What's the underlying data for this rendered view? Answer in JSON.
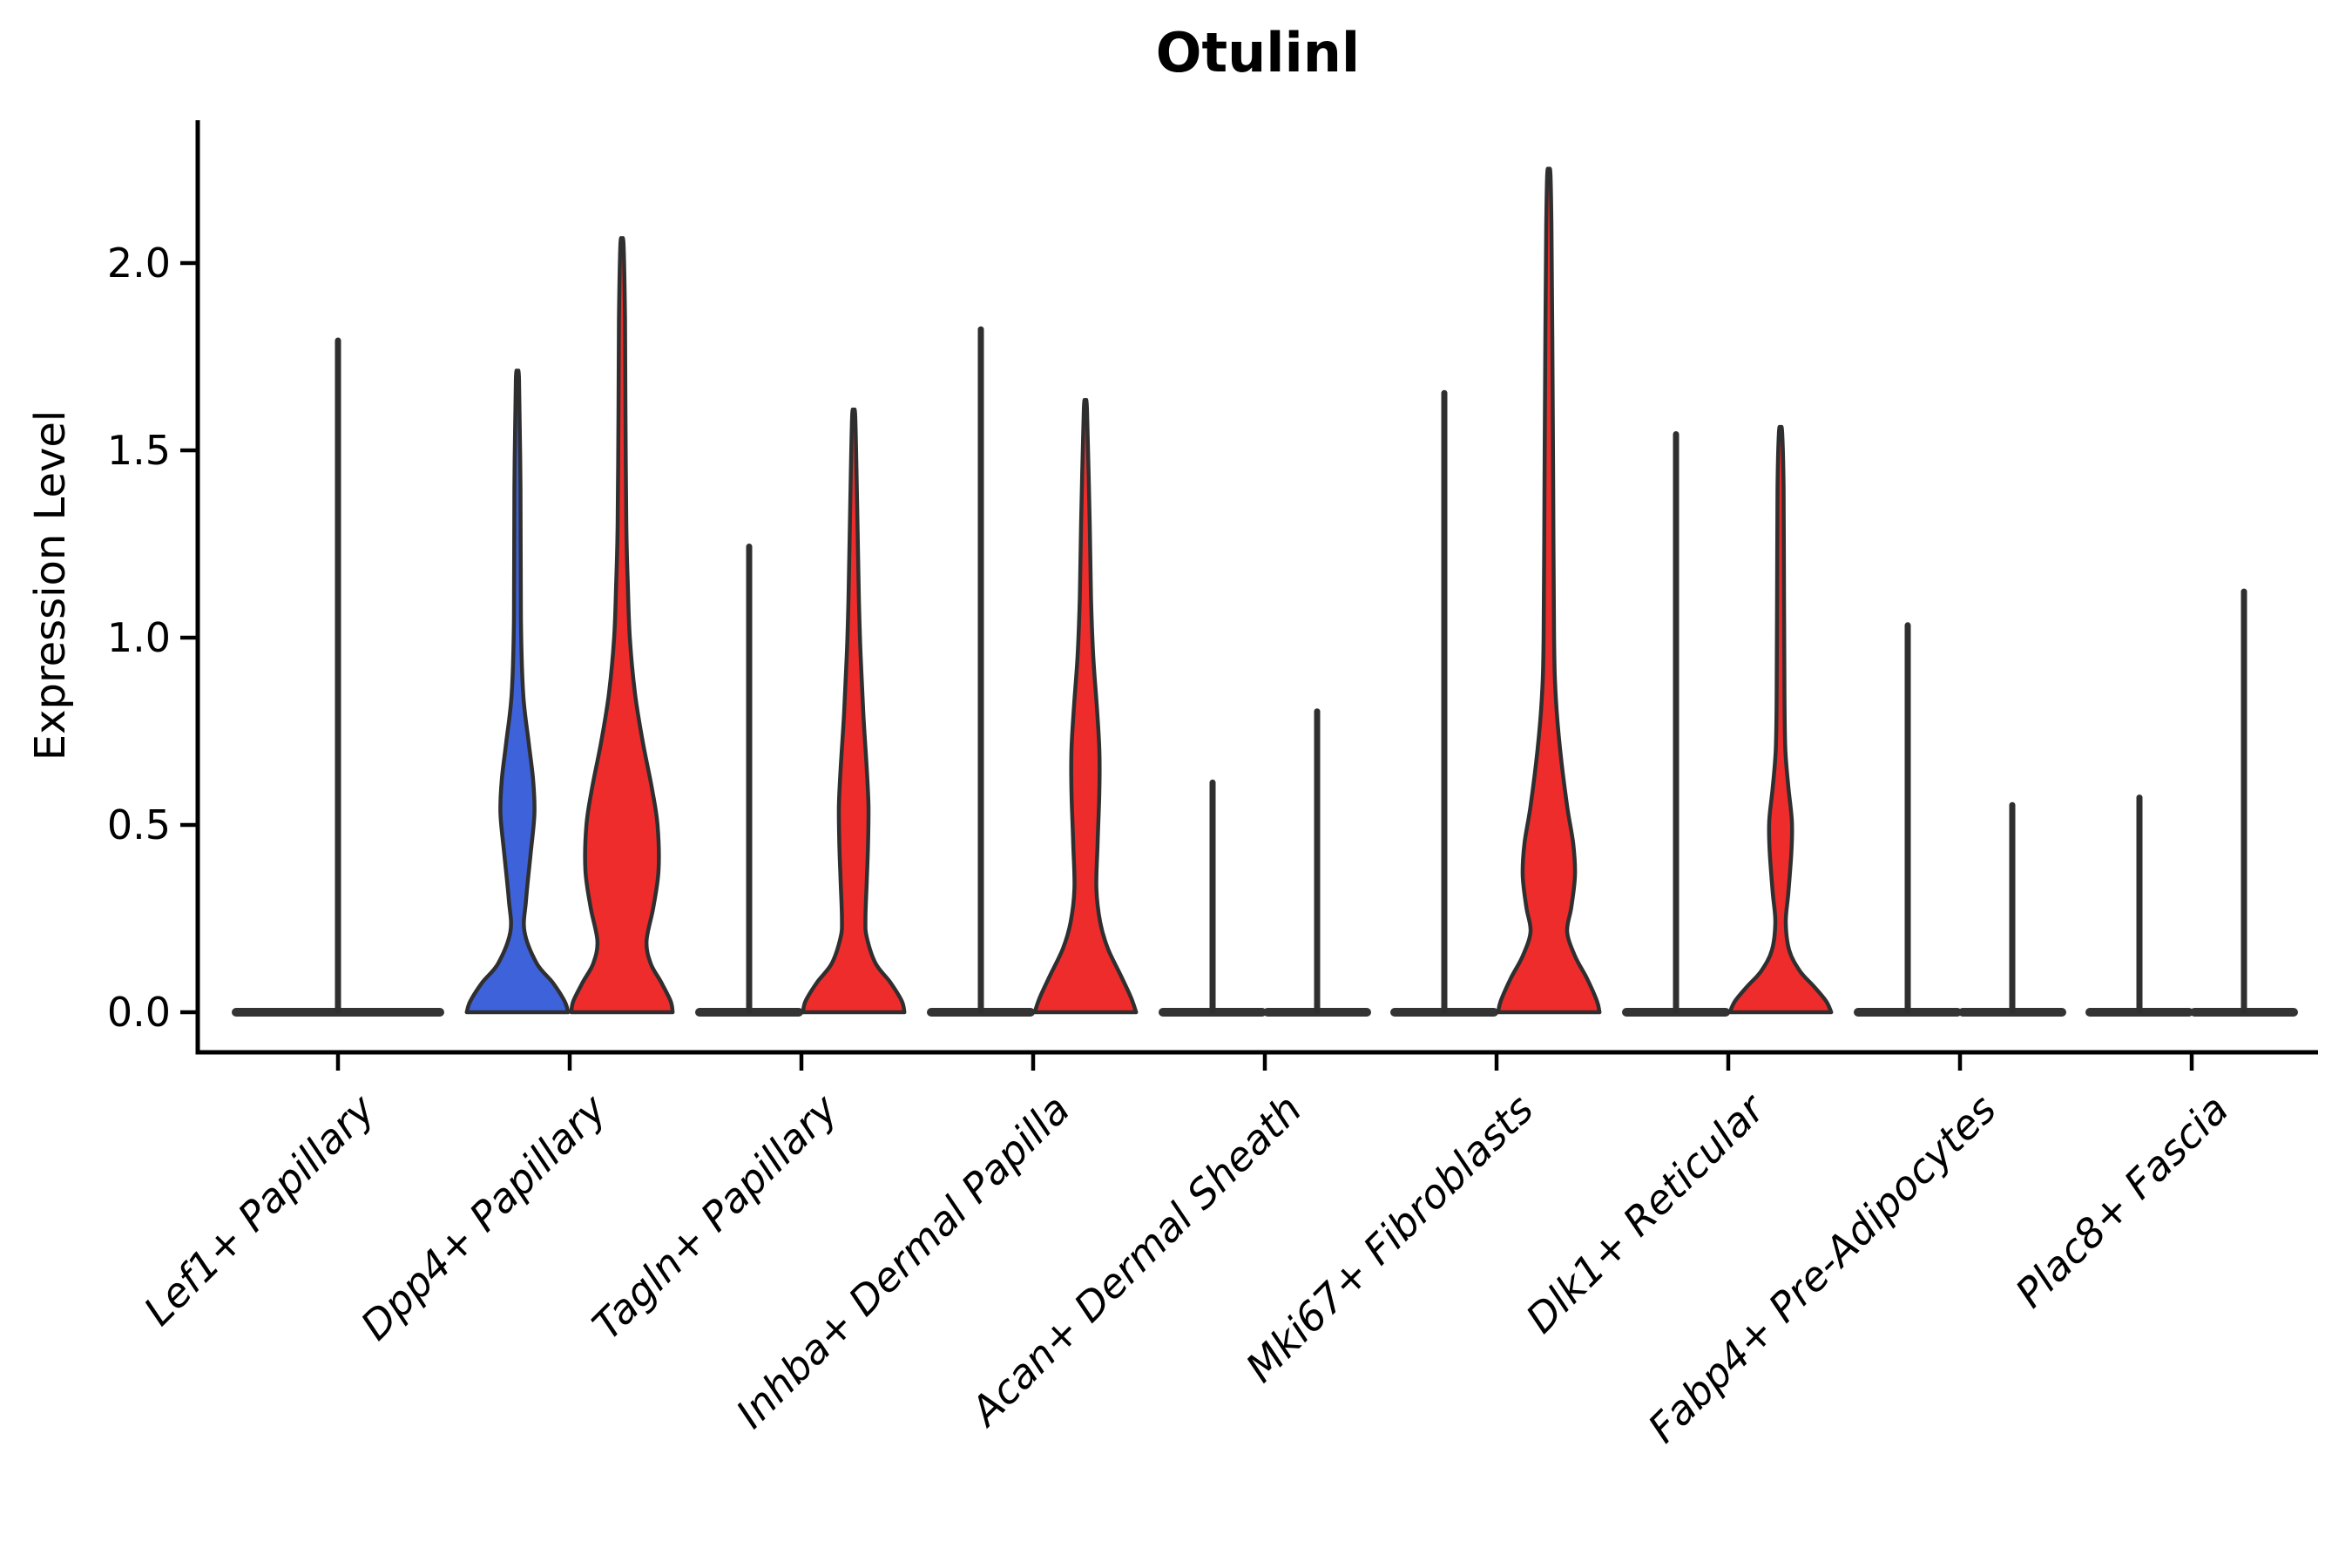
{
  "title": "Otulinl",
  "y_axis": {
    "label": "Expression Level",
    "tick_labels": [
      "2.0",
      "1.5",
      "1.0",
      "0.5",
      "0.0"
    ],
    "tick_values": [
      2.0,
      1.5,
      1.0,
      0.5,
      0.0
    ]
  },
  "x_axis": {
    "categories": [
      "Lef1+ Papillary",
      "Dpp4+ Papillary",
      "Tagln+ Papillary",
      "Inhba+ Dermal Papilla",
      "Acan+ Dermal Sheath",
      "Mki67+ Fibroblasts",
      "Dlk1+ Reticular",
      "Fabp4+ Pre-Adipocytes",
      "Plac8+ Fascia"
    ]
  },
  "colors": {
    "group_blue": "#3E62D9",
    "group_red": "#EE2C2C",
    "outline": "#2F2F2F",
    "flat_violin": "#333333",
    "text": "#000000"
  },
  "chart_data": {
    "type": "violin",
    "title": "Otulinl",
    "xlabel": "",
    "ylabel": "Expression Level",
    "ylim": [
      -0.11,
      2.38
    ],
    "yticks": [
      0.0,
      0.5,
      1.0,
      1.5,
      2.0
    ],
    "grid": false,
    "legend": "none",
    "categories": [
      "Lef1+ Papillary",
      "Dpp4+ Papillary",
      "Tagln+ Papillary",
      "Inhba+ Dermal Papilla",
      "Acan+ Dermal Sheath",
      "Mki67+ Fibroblasts",
      "Dlk1+ Reticular",
      "Fabp4+ Pre-Adipocytes",
      "Plac8+ Fascia"
    ],
    "violins": [
      {
        "category_index": 0,
        "position": "full",
        "style": "flat",
        "color": "#333333",
        "max_expression": 1.8
      },
      {
        "category_index": 1,
        "position": "left",
        "style": "filled",
        "color": "#3E62D9",
        "max_expression": 1.69,
        "profile": [
          [
            0.0,
            0.97
          ],
          [
            0.03,
            0.9
          ],
          [
            0.08,
            0.67
          ],
          [
            0.13,
            0.37
          ],
          [
            0.215,
            0.135
          ],
          [
            0.3,
            0.165
          ],
          [
            0.42,
            0.25
          ],
          [
            0.53,
            0.325
          ],
          [
            0.62,
            0.3
          ],
          [
            0.72,
            0.215
          ],
          [
            0.85,
            0.11
          ],
          [
            1.05,
            0.067
          ],
          [
            1.4,
            0.058
          ],
          [
            1.69,
            0.03
          ]
        ]
      },
      {
        "category_index": 1,
        "position": "right",
        "style": "filled",
        "color": "#EE2C2C",
        "max_expression": 2.05,
        "profile": [
          [
            0.0,
            0.97
          ],
          [
            0.03,
            0.93
          ],
          [
            0.08,
            0.75
          ],
          [
            0.13,
            0.55
          ],
          [
            0.19,
            0.47
          ],
          [
            0.28,
            0.6
          ],
          [
            0.38,
            0.7
          ],
          [
            0.5,
            0.68
          ],
          [
            0.6,
            0.57
          ],
          [
            0.72,
            0.4
          ],
          [
            0.85,
            0.25
          ],
          [
            1.0,
            0.15
          ],
          [
            1.15,
            0.11
          ],
          [
            1.3,
            0.083
          ],
          [
            1.6,
            0.067
          ],
          [
            1.85,
            0.058
          ],
          [
            2.05,
            0.03
          ]
        ]
      },
      {
        "category_index": 2,
        "position": "left",
        "style": "flat",
        "color": "#333333",
        "max_expression": 1.25
      },
      {
        "category_index": 2,
        "position": "right",
        "style": "filled",
        "color": "#EE2C2C",
        "max_expression": 1.59,
        "profile": [
          [
            0.0,
            0.97
          ],
          [
            0.03,
            0.92
          ],
          [
            0.08,
            0.7
          ],
          [
            0.13,
            0.42
          ],
          [
            0.2,
            0.25
          ],
          [
            0.25,
            0.225
          ],
          [
            0.35,
            0.25
          ],
          [
            0.45,
            0.275
          ],
          [
            0.55,
            0.283
          ],
          [
            0.65,
            0.25
          ],
          [
            0.8,
            0.183
          ],
          [
            0.95,
            0.133
          ],
          [
            1.1,
            0.1
          ],
          [
            1.35,
            0.067
          ],
          [
            1.59,
            0.03
          ]
        ]
      },
      {
        "category_index": 3,
        "position": "left",
        "style": "flat",
        "color": "#333333",
        "max_expression": 1.83
      },
      {
        "category_index": 3,
        "position": "right",
        "style": "filled",
        "color": "#EE2C2C",
        "max_expression": 1.61,
        "profile": [
          [
            0.0,
            0.97
          ],
          [
            0.04,
            0.87
          ],
          [
            0.1,
            0.67
          ],
          [
            0.17,
            0.43
          ],
          [
            0.24,
            0.283
          ],
          [
            0.33,
            0.21
          ],
          [
            0.45,
            0.233
          ],
          [
            0.59,
            0.267
          ],
          [
            0.7,
            0.267
          ],
          [
            0.82,
            0.217
          ],
          [
            0.95,
            0.15
          ],
          [
            1.1,
            0.108
          ],
          [
            1.3,
            0.083
          ],
          [
            1.61,
            0.03
          ]
        ]
      },
      {
        "category_index": 4,
        "position": "left",
        "style": "flat",
        "color": "#333333",
        "max_expression": 0.62
      },
      {
        "category_index": 4,
        "position": "right",
        "style": "flat",
        "color": "#333333",
        "max_expression": 0.81
      },
      {
        "category_index": 5,
        "position": "left",
        "style": "flat",
        "color": "#333333",
        "max_expression": 1.66
      },
      {
        "category_index": 5,
        "position": "right",
        "style": "filled",
        "color": "#EE2C2C",
        "max_expression": 2.24,
        "profile": [
          [
            0.0,
            0.97
          ],
          [
            0.03,
            0.92
          ],
          [
            0.09,
            0.73
          ],
          [
            0.15,
            0.5
          ],
          [
            0.215,
            0.35
          ],
          [
            0.28,
            0.43
          ],
          [
            0.365,
            0.5
          ],
          [
            0.45,
            0.467
          ],
          [
            0.55,
            0.35
          ],
          [
            0.7,
            0.217
          ],
          [
            0.84,
            0.133
          ],
          [
            1.0,
            0.1
          ],
          [
            1.4,
            0.083
          ],
          [
            1.8,
            0.067
          ],
          [
            2.1,
            0.05
          ],
          [
            2.24,
            0.03
          ]
        ]
      },
      {
        "category_index": 6,
        "position": "left",
        "style": "flat",
        "color": "#333333",
        "max_expression": 1.55
      },
      {
        "category_index": 6,
        "position": "right",
        "style": "filled",
        "color": "#EE2C2C",
        "max_expression": 1.55,
        "profile": [
          [
            0.0,
            0.97
          ],
          [
            0.03,
            0.87
          ],
          [
            0.07,
            0.63
          ],
          [
            0.11,
            0.37
          ],
          [
            0.165,
            0.167
          ],
          [
            0.24,
            0.1
          ],
          [
            0.32,
            0.15
          ],
          [
            0.43,
            0.208
          ],
          [
            0.51,
            0.217
          ],
          [
            0.6,
            0.15
          ],
          [
            0.7,
            0.092
          ],
          [
            0.84,
            0.075
          ],
          [
            1.1,
            0.067
          ],
          [
            1.4,
            0.058
          ],
          [
            1.55,
            0.03
          ]
        ]
      },
      {
        "category_index": 7,
        "position": "left",
        "style": "flat",
        "color": "#333333",
        "max_expression": 1.04
      },
      {
        "category_index": 7,
        "position": "right",
        "style": "flat",
        "color": "#333333",
        "max_expression": 0.56
      },
      {
        "category_index": 8,
        "position": "left",
        "style": "flat",
        "color": "#333333",
        "max_expression": 0.58
      },
      {
        "category_index": 8,
        "position": "right",
        "style": "flat",
        "color": "#333333",
        "max_expression": 1.13
      }
    ]
  }
}
